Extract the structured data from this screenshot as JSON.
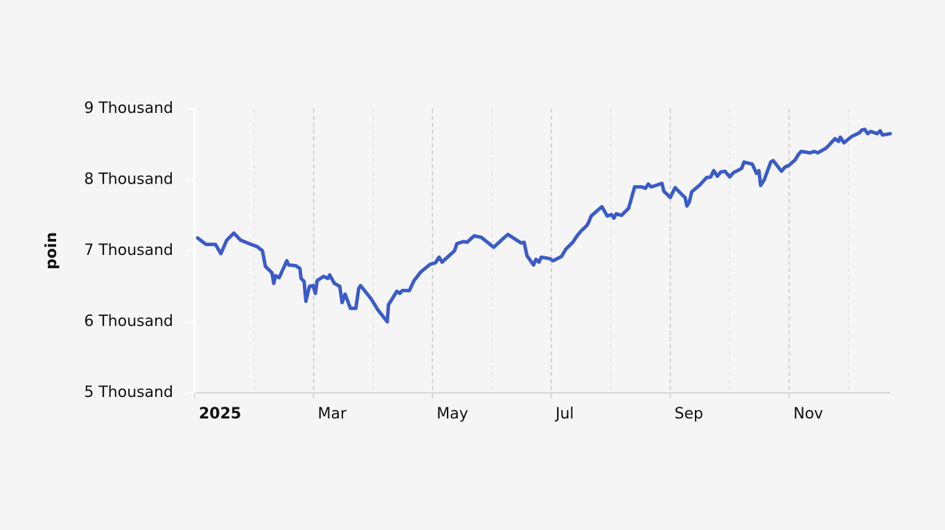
{
  "chart_data": {
    "type": "line",
    "y_label": "poin",
    "xlim": [
      0,
      11.7
    ],
    "xticks": [
      {
        "value": 0,
        "label": "2025"
      },
      {
        "value": 2,
        "label": "Mar"
      },
      {
        "value": 4,
        "label": "May"
      },
      {
        "value": 6,
        "label": "Jul"
      },
      {
        "value": 8,
        "label": "Sep"
      },
      {
        "value": 10,
        "label": "Nov"
      }
    ],
    "xticks_minor": [
      1,
      3,
      5,
      7,
      9,
      11
    ],
    "ylim": [
      5000,
      9000
    ],
    "yticks": [
      {
        "value": 5000,
        "label": "5 Thousand"
      },
      {
        "value": 6000,
        "label": "6 Thousand"
      },
      {
        "value": 7000,
        "label": "7 Thousand"
      },
      {
        "value": 8000,
        "label": "8 Thousand"
      },
      {
        "value": 9000,
        "label": "9 Thousand"
      }
    ],
    "grid": true,
    "series": [
      {
        "color": "#3a5bc7",
        "x": [
          0.05,
          0.19,
          0.35,
          0.44,
          0.54,
          0.66,
          0.77,
          0.95,
          1.05,
          1.14,
          1.19,
          1.3,
          1.33,
          1.36,
          1.42,
          1.55,
          1.58,
          1.7,
          1.77,
          1.79,
          1.84,
          1.87,
          1.93,
          1.99,
          2.03,
          2.06,
          2.17,
          2.24,
          2.27,
          2.35,
          2.44,
          2.48,
          2.53,
          2.62,
          2.71,
          2.76,
          2.79,
          2.97,
          3.08,
          3.24,
          3.26,
          3.4,
          3.45,
          3.49,
          3.61,
          3.69,
          3.8,
          3.96,
          4.05,
          4.11,
          4.16,
          4.37,
          4.41,
          4.52,
          4.58,
          4.7,
          4.82,
          5.03,
          5.2,
          5.27,
          5.38,
          5.49,
          5.54,
          5.59,
          5.7,
          5.74,
          5.79,
          5.83,
          5.97,
          6.03,
          6.17,
          6.24,
          6.36,
          6.43,
          6.5,
          6.59,
          6.62,
          6.67,
          6.79,
          6.85,
          6.94,
          7.01,
          7.05,
          7.09,
          7.18,
          7.3,
          7.35,
          7.4,
          7.52,
          7.58,
          7.63,
          7.68,
          7.79,
          7.86,
          7.89,
          8.0,
          8.08,
          8.21,
          8.25,
          8.28,
          8.32,
          8.36,
          8.5,
          8.61,
          8.68,
          8.73,
          8.79,
          8.85,
          8.92,
          9.0,
          9.06,
          9.2,
          9.24,
          9.38,
          9.45,
          9.49,
          9.52,
          9.58,
          9.69,
          9.73,
          9.87,
          9.93,
          9.99,
          10.1,
          10.15,
          10.2,
          10.35,
          10.42,
          10.48,
          10.61,
          10.66,
          10.77,
          10.83,
          10.86,
          10.92,
          11.05,
          11.18,
          11.22,
          11.27,
          11.32,
          11.37,
          11.48,
          11.53,
          11.57,
          11.7
        ],
        "values": [
          7180,
          7090,
          7090,
          6960,
          7150,
          7250,
          7150,
          7090,
          7060,
          7000,
          6780,
          6690,
          6540,
          6650,
          6620,
          6860,
          6800,
          6790,
          6750,
          6610,
          6570,
          6290,
          6500,
          6510,
          6400,
          6580,
          6640,
          6610,
          6660,
          6540,
          6500,
          6270,
          6390,
          6190,
          6190,
          6470,
          6510,
          6320,
          6170,
          6000,
          6240,
          6430,
          6400,
          6440,
          6440,
          6580,
          6700,
          6810,
          6830,
          6910,
          6840,
          7000,
          7100,
          7130,
          7120,
          7210,
          7190,
          7050,
          7180,
          7230,
          7170,
          7110,
          7120,
          6930,
          6800,
          6880,
          6840,
          6910,
          6890,
          6860,
          6920,
          7020,
          7120,
          7210,
          7280,
          7350,
          7390,
          7490,
          7580,
          7620,
          7490,
          7510,
          7460,
          7520,
          7500,
          7600,
          7750,
          7900,
          7900,
          7880,
          7940,
          7900,
          7930,
          7950,
          7840,
          7750,
          7890,
          7780,
          7750,
          7630,
          7690,
          7830,
          7930,
          8030,
          8040,
          8130,
          8050,
          8110,
          8120,
          8040,
          8100,
          8160,
          8250,
          8220,
          8090,
          8130,
          7920,
          8000,
          8250,
          8270,
          8120,
          8180,
          8200,
          8280,
          8350,
          8400,
          8380,
          8400,
          8380,
          8440,
          8480,
          8580,
          8540,
          8600,
          8520,
          8610,
          8660,
          8700,
          8710,
          8650,
          8680,
          8650,
          8690,
          8630,
          8650
        ]
      }
    ]
  }
}
